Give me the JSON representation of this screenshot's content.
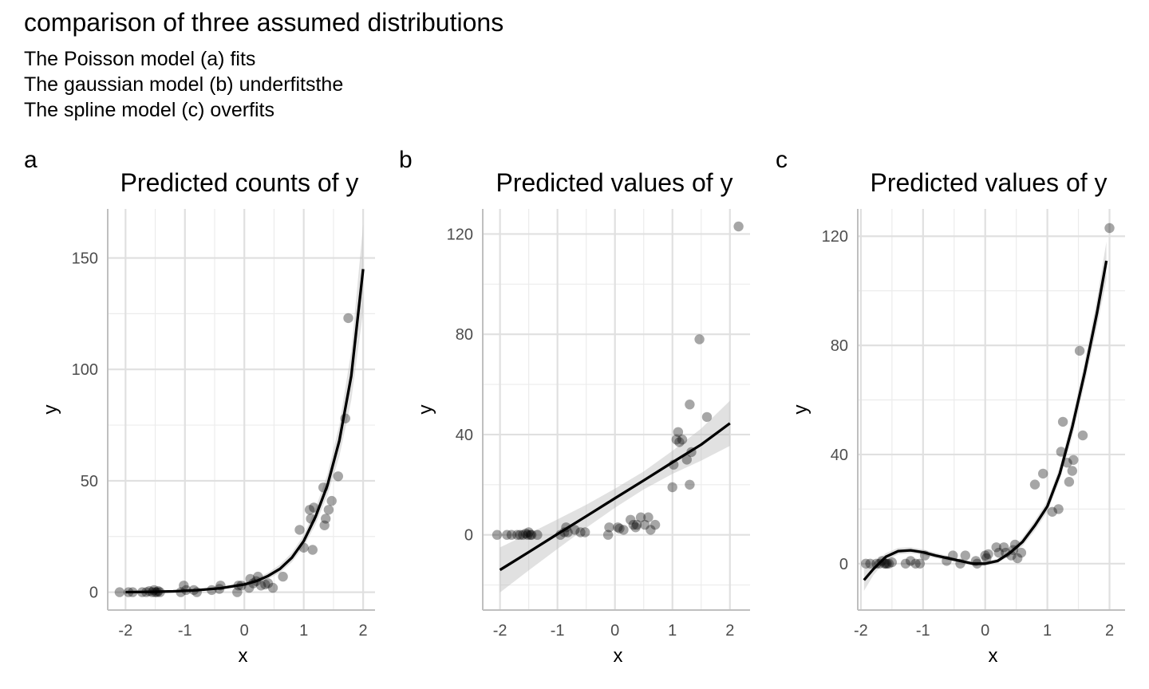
{
  "page": {
    "title": "comparison of three assumed distributions",
    "subtitle_lines": [
      "The Poisson model (a) fits",
      "The gaussian model (b) underfitsthe",
      "The spline model (c) overfits"
    ]
  },
  "chart_data": [
    {
      "type": "scatter",
      "tag": "a",
      "title": "Predicted counts of y",
      "xlabel": "x",
      "ylabel": "y",
      "xlim": [
        -2.3,
        2.2
      ],
      "ylim": [
        -8,
        172
      ],
      "xticks": [
        -2,
        -1,
        0,
        1,
        2
      ],
      "xtick_labels": [
        "-2",
        "-1",
        "0",
        "1",
        "2"
      ],
      "yticks": [
        0,
        50,
        100,
        150
      ],
      "ytick_labels": [
        "0",
        "50",
        "100",
        "150"
      ],
      "grid": true,
      "points": [
        [
          -2.1,
          0
        ],
        [
          -1.95,
          0
        ],
        [
          -1.88,
          0
        ],
        [
          -1.72,
          0
        ],
        [
          -1.65,
          0
        ],
        [
          -1.6,
          0.5
        ],
        [
          -1.55,
          0
        ],
        [
          -1.52,
          1
        ],
        [
          -1.5,
          0
        ],
        [
          -1.47,
          0
        ],
        [
          -1.45,
          0.5
        ],
        [
          -1.42,
          0
        ],
        [
          -1.07,
          0
        ],
        [
          -1.02,
          3
        ],
        [
          -0.98,
          1
        ],
        [
          -0.85,
          1
        ],
        [
          -0.8,
          0
        ],
        [
          -0.55,
          1
        ],
        [
          -0.42,
          1.5
        ],
        [
          -0.4,
          3
        ],
        [
          -0.12,
          0
        ],
        [
          -0.1,
          3
        ],
        [
          -0.05,
          3
        ],
        [
          0.08,
          2
        ],
        [
          0.1,
          6
        ],
        [
          0.15,
          4
        ],
        [
          0.2,
          5
        ],
        [
          0.23,
          7
        ],
        [
          0.28,
          3
        ],
        [
          0.35,
          3.5
        ],
        [
          0.4,
          4
        ],
        [
          0.48,
          2
        ],
        [
          0.65,
          7
        ],
        [
          0.93,
          28
        ],
        [
          1.0,
          20
        ],
        [
          1.1,
          37
        ],
        [
          1.12,
          33
        ],
        [
          1.15,
          19
        ],
        [
          1.17,
          38
        ],
        [
          1.33,
          47
        ],
        [
          1.35,
          30
        ],
        [
          1.37,
          33
        ],
        [
          1.42,
          37
        ],
        [
          1.47,
          41
        ],
        [
          1.58,
          52
        ],
        [
          1.7,
          78
        ],
        [
          1.75,
          123
        ]
      ],
      "fit": {
        "x": [
          -2.0,
          -1.6,
          -1.2,
          -0.8,
          -0.4,
          0.0,
          0.2,
          0.4,
          0.6,
          0.8,
          1.0,
          1.2,
          1.4,
          1.6,
          1.8,
          2.0
        ],
        "y": [
          0.05,
          0.15,
          0.4,
          0.9,
          1.8,
          3.5,
          5.0,
          7.3,
          10.5,
          15.5,
          23,
          34,
          48,
          68,
          97,
          145
        ],
        "lower": [
          0.02,
          0.08,
          0.25,
          0.6,
          1.3,
          2.7,
          4.0,
          6.0,
          8.8,
          13.5,
          20.5,
          30.5,
          43.5,
          61,
          86,
          126
        ],
        "upper": [
          0.1,
          0.3,
          0.65,
          1.3,
          2.4,
          4.5,
          6.2,
          8.8,
          12.4,
          17.7,
          25.6,
          37.8,
          53,
          75,
          108,
          165
        ]
      }
    },
    {
      "type": "scatter",
      "tag": "b",
      "title": "Predicted values of y",
      "xlabel": "x",
      "ylabel": "y",
      "xlim": [
        -2.3,
        2.35
      ],
      "ylim": [
        -30,
        130
      ],
      "xticks": [
        -2,
        -1,
        0,
        1,
        2
      ],
      "xtick_labels": [
        "-2",
        "-1",
        "0",
        "1",
        "2"
      ],
      "yticks": [
        0,
        40,
        80,
        120
      ],
      "ytick_labels": [
        "0",
        "40",
        "80",
        "120"
      ],
      "grid": true,
      "points": [
        [
          -2.05,
          0
        ],
        [
          -1.88,
          0
        ],
        [
          -1.8,
          0
        ],
        [
          -1.7,
          0
        ],
        [
          -1.65,
          0
        ],
        [
          -1.6,
          0
        ],
        [
          -1.55,
          0.5
        ],
        [
          -1.52,
          0
        ],
        [
          -1.5,
          1
        ],
        [
          -1.47,
          0
        ],
        [
          -1.45,
          0
        ],
        [
          -1.35,
          0
        ],
        [
          -0.95,
          0
        ],
        [
          -0.88,
          1
        ],
        [
          -0.85,
          3
        ],
        [
          -0.82,
          1
        ],
        [
          -0.7,
          2
        ],
        [
          -0.6,
          1
        ],
        [
          -0.52,
          1
        ],
        [
          -0.12,
          0
        ],
        [
          -0.1,
          3
        ],
        [
          0.05,
          3
        ],
        [
          0.08,
          2.5
        ],
        [
          0.15,
          2
        ],
        [
          0.27,
          6
        ],
        [
          0.32,
          4
        ],
        [
          0.36,
          3
        ],
        [
          0.38,
          4
        ],
        [
          0.45,
          7
        ],
        [
          0.52,
          4
        ],
        [
          0.58,
          7
        ],
        [
          0.62,
          2
        ],
        [
          0.7,
          4
        ],
        [
          1.0,
          19
        ],
        [
          1.02,
          28
        ],
        [
          1.07,
          38
        ],
        [
          1.1,
          41
        ],
        [
          1.12,
          37
        ],
        [
          1.17,
          38
        ],
        [
          1.25,
          30
        ],
        [
          1.3,
          52
        ],
        [
          1.3,
          20
        ],
        [
          1.33,
          33
        ],
        [
          1.47,
          78
        ],
        [
          1.6,
          47
        ],
        [
          2.15,
          123
        ]
      ],
      "fit": {
        "x": [
          -2.0,
          -1.5,
          -1.0,
          -0.5,
          0.0,
          0.5,
          1.0,
          1.5,
          2.0
        ],
        "y": [
          -14,
          -6.9,
          0.3,
          7.4,
          14.6,
          21.7,
          28.9,
          36,
          44.5
        ],
        "lower": [
          -23,
          -14.2,
          -5.6,
          2.8,
          10.8,
          18.1,
          24.3,
          29.6,
          35.5
        ],
        "upper": [
          -5,
          0.4,
          6.2,
          12,
          18.4,
          25.3,
          33.5,
          42.4,
          53.5
        ]
      }
    },
    {
      "type": "scatter",
      "tag": "c",
      "title": "Predicted values of y",
      "xlabel": "x",
      "ylabel": "y",
      "xlim": [
        -2.05,
        2.25
      ],
      "ylim": [
        -17,
        130
      ],
      "xticks": [
        -2,
        -1,
        0,
        1,
        2
      ],
      "xtick_labels": [
        "-2",
        "-1",
        "0",
        "1",
        "2"
      ],
      "yticks": [
        0,
        40,
        80,
        120
      ],
      "ytick_labels": [
        "0",
        "40",
        "80",
        "120"
      ],
      "grid": true,
      "points": [
        [
          -1.92,
          0
        ],
        [
          -1.85,
          0
        ],
        [
          -1.75,
          0
        ],
        [
          -1.7,
          0
        ],
        [
          -1.66,
          1
        ],
        [
          -1.62,
          0
        ],
        [
          -1.6,
          0
        ],
        [
          -1.58,
          0
        ],
        [
          -1.55,
          0
        ],
        [
          -1.5,
          0.5
        ],
        [
          -1.28,
          0
        ],
        [
          -1.2,
          1
        ],
        [
          -1.12,
          0
        ],
        [
          -1.05,
          0
        ],
        [
          -0.97,
          3
        ],
        [
          -0.62,
          1
        ],
        [
          -0.52,
          3
        ],
        [
          -0.4,
          0
        ],
        [
          -0.32,
          3
        ],
        [
          -0.15,
          1
        ],
        [
          -0.13,
          0
        ],
        [
          0.0,
          3
        ],
        [
          0.02,
          2
        ],
        [
          0.05,
          3.5
        ],
        [
          0.18,
          6
        ],
        [
          0.22,
          4
        ],
        [
          0.3,
          6
        ],
        [
          0.33,
          4
        ],
        [
          0.42,
          3
        ],
        [
          0.45,
          5
        ],
        [
          0.48,
          7
        ],
        [
          0.52,
          2
        ],
        [
          0.58,
          4
        ],
        [
          0.8,
          29
        ],
        [
          0.93,
          33
        ],
        [
          1.08,
          19
        ],
        [
          1.18,
          20
        ],
        [
          1.22,
          41
        ],
        [
          1.25,
          52
        ],
        [
          1.32,
          37
        ],
        [
          1.35,
          30
        ],
        [
          1.4,
          34
        ],
        [
          1.42,
          38
        ],
        [
          1.52,
          78
        ],
        [
          1.57,
          47
        ],
        [
          2.0,
          123
        ]
      ],
      "fit": {
        "x": [
          -1.95,
          -1.8,
          -1.6,
          -1.4,
          -1.2,
          -1.0,
          -0.8,
          -0.6,
          -0.4,
          -0.2,
          0.0,
          0.2,
          0.4,
          0.6,
          0.8,
          1.0,
          1.2,
          1.4,
          1.6,
          1.8,
          1.95
        ],
        "y": [
          -6,
          -2,
          2.5,
          4.6,
          4.9,
          4.2,
          3,
          2,
          1,
          0,
          0,
          1,
          4,
          8,
          14,
          21,
          33,
          50,
          70,
          92,
          111
        ],
        "lower": [
          -10,
          -4.2,
          1.2,
          3.4,
          3.8,
          3.2,
          2,
          1.2,
          0.3,
          -0.7,
          -0.8,
          0.2,
          3,
          6.5,
          12.2,
          19,
          30.5,
          46.5,
          66,
          87,
          104
        ],
        "upper": [
          -2,
          0.2,
          3.8,
          5.8,
          6,
          5.2,
          4,
          2.8,
          1.7,
          0.7,
          0.8,
          1.8,
          5,
          9.5,
          15.8,
          23,
          35.5,
          53.5,
          74,
          97,
          118
        ]
      }
    }
  ]
}
